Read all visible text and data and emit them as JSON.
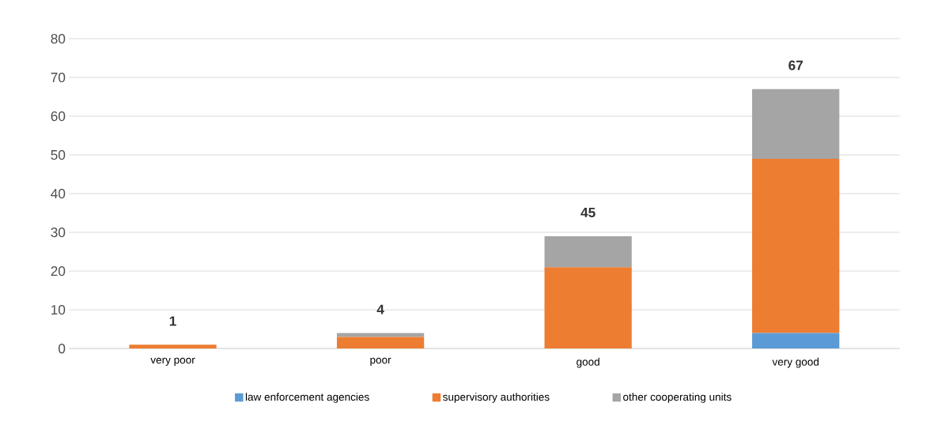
{
  "chart_data": {
    "type": "bar",
    "stacked": true,
    "categories": [
      "very poor",
      "poor",
      "good",
      "very good"
    ],
    "series": [
      {
        "name": "law enforcement agencies",
        "color": "#5b9bd5",
        "values": [
          0,
          0,
          0,
          4
        ]
      },
      {
        "name": "supervisory authorities",
        "color": "#ed7d31",
        "values": [
          1,
          3,
          21,
          45
        ]
      },
      {
        "name": "other cooperating units",
        "color": "#a5a5a5",
        "values": [
          0,
          1,
          8,
          18
        ]
      }
    ],
    "annotations": [
      {
        "text": "1",
        "x": "very poor",
        "y": 1
      },
      {
        "text": "4",
        "x": "poor",
        "y": 4
      },
      {
        "text": "45",
        "x": "good",
        "y": 29
      },
      {
        "text": "67",
        "x": "very good",
        "y": 67
      }
    ],
    "ylim": [
      0,
      80
    ],
    "yticks": [
      0,
      10,
      20,
      30,
      40,
      50,
      60,
      70,
      80
    ],
    "grid": "y",
    "legend": "bottom"
  }
}
